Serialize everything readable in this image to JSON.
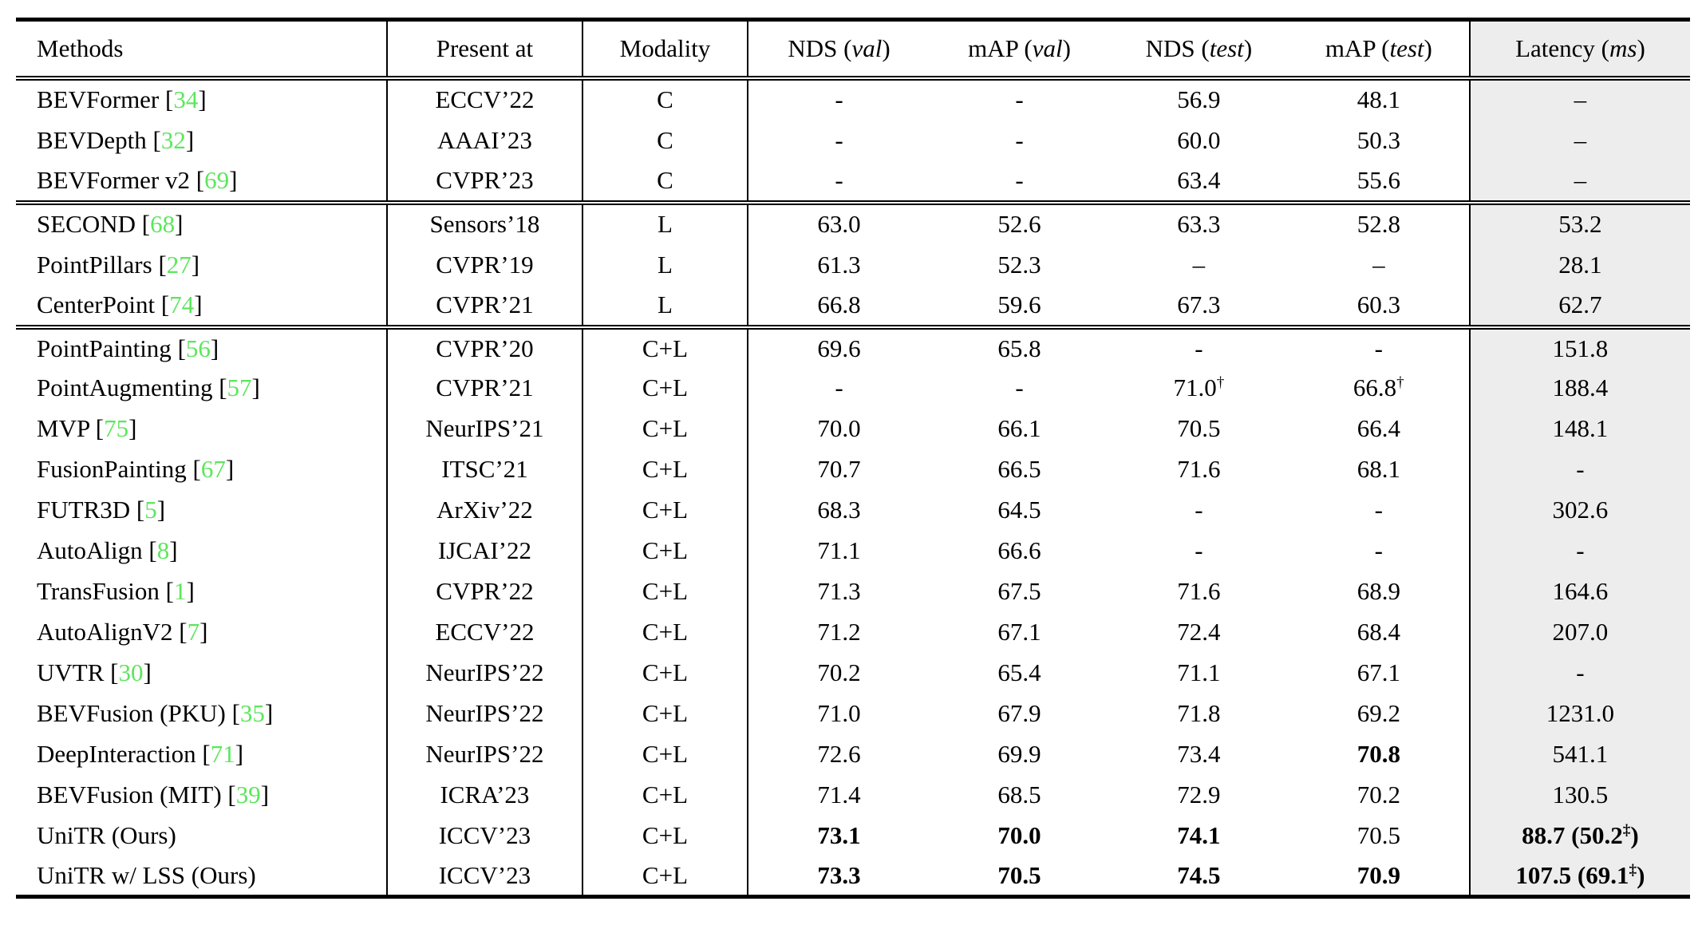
{
  "colors": {
    "citation_green": "#5ce65c",
    "latency_column_bg": "#ededed",
    "rule_black": "#000000"
  },
  "table": {
    "columns": [
      {
        "id": "methods",
        "pre": "Methods",
        "it": "",
        "post": ""
      },
      {
        "id": "present",
        "pre": "Present at",
        "it": "",
        "post": ""
      },
      {
        "id": "modality",
        "pre": "Modality",
        "it": "",
        "post": ""
      },
      {
        "id": "nds_val",
        "pre": "NDS (",
        "it": "val",
        "post": ")"
      },
      {
        "id": "map_val",
        "pre": "mAP (",
        "it": "val",
        "post": ")"
      },
      {
        "id": "nds_test",
        "pre": "NDS (",
        "it": "test",
        "post": ")"
      },
      {
        "id": "map_test",
        "pre": "mAP (",
        "it": "test",
        "post": ")"
      },
      {
        "id": "latency",
        "pre": "Latency (",
        "it": "ms",
        "post": ")"
      }
    ],
    "sections": [
      {
        "name": "camera",
        "rows": [
          {
            "method": "BEVFormer",
            "cite": "34",
            "venue": "ECCV’22",
            "modality": "C",
            "metrics": [
              {
                "t": "-"
              },
              {
                "t": "-"
              },
              {
                "t": "56.9"
              },
              {
                "t": "48.1"
              },
              {
                "t": "–"
              }
            ]
          },
          {
            "method": "BEVDepth",
            "cite": "32",
            "venue": "AAAI’23",
            "modality": "C",
            "metrics": [
              {
                "t": "-"
              },
              {
                "t": "-"
              },
              {
                "t": "60.0"
              },
              {
                "t": "50.3"
              },
              {
                "t": "–"
              }
            ]
          },
          {
            "method": "BEVFormer v2",
            "cite": "69",
            "venue": "CVPR’23",
            "modality": "C",
            "metrics": [
              {
                "t": "-"
              },
              {
                "t": "-"
              },
              {
                "t": "63.4"
              },
              {
                "t": "55.6"
              },
              {
                "t": "–"
              }
            ]
          }
        ]
      },
      {
        "name": "lidar",
        "rows": [
          {
            "method": "SECOND",
            "cite": "68",
            "venue": "Sensors’18",
            "modality": "L",
            "metrics": [
              {
                "t": "63.0"
              },
              {
                "t": "52.6"
              },
              {
                "t": "63.3"
              },
              {
                "t": "52.8"
              },
              {
                "t": "53.2"
              }
            ]
          },
          {
            "method": "PointPillars",
            "cite": "27",
            "venue": "CVPR’19",
            "modality": "L",
            "metrics": [
              {
                "t": "61.3"
              },
              {
                "t": "52.3"
              },
              {
                "t": "–"
              },
              {
                "t": "–"
              },
              {
                "t": "28.1"
              }
            ]
          },
          {
            "method": "CenterPoint",
            "cite": "74",
            "venue": "CVPR’21",
            "modality": "L",
            "metrics": [
              {
                "t": "66.8"
              },
              {
                "t": "59.6"
              },
              {
                "t": "67.3"
              },
              {
                "t": "60.3"
              },
              {
                "t": "62.7"
              }
            ]
          }
        ]
      },
      {
        "name": "fusion",
        "rows": [
          {
            "method": "PointPainting",
            "cite": "56",
            "venue": "CVPR’20",
            "modality": "C+L",
            "metrics": [
              {
                "t": "69.6"
              },
              {
                "t": "65.8"
              },
              {
                "t": "-"
              },
              {
                "t": "-"
              },
              {
                "t": "151.8"
              }
            ]
          },
          {
            "method": "PointAugmenting",
            "cite": "57",
            "venue": "CVPR’21",
            "modality": "C+L",
            "metrics": [
              {
                "t": "-"
              },
              {
                "t": "-"
              },
              {
                "t": "71.0",
                "sup": "†"
              },
              {
                "t": "66.8",
                "sup": "†"
              },
              {
                "t": "188.4"
              }
            ]
          },
          {
            "method": "MVP",
            "cite": "75",
            "venue": "NeurIPS’21",
            "modality": "C+L",
            "metrics": [
              {
                "t": "70.0"
              },
              {
                "t": "66.1"
              },
              {
                "t": "70.5"
              },
              {
                "t": "66.4"
              },
              {
                "t": "148.1"
              }
            ]
          },
          {
            "method": "FusionPainting",
            "cite": "67",
            "venue": "ITSC’21",
            "modality": "C+L",
            "metrics": [
              {
                "t": "70.7"
              },
              {
                "t": "66.5"
              },
              {
                "t": "71.6"
              },
              {
                "t": "68.1"
              },
              {
                "t": "-"
              }
            ]
          },
          {
            "method": "FUTR3D",
            "cite": "5",
            "venue": "ArXiv’22",
            "modality": "C+L",
            "metrics": [
              {
                "t": "68.3"
              },
              {
                "t": "64.5"
              },
              {
                "t": "-"
              },
              {
                "t": "-"
              },
              {
                "t": "302.6"
              }
            ]
          },
          {
            "method": "AutoAlign",
            "cite": "8",
            "venue": "IJCAI’22",
            "modality": "C+L",
            "metrics": [
              {
                "t": "71.1"
              },
              {
                "t": "66.6"
              },
              {
                "t": "-"
              },
              {
                "t": "-"
              },
              {
                "t": "-"
              }
            ]
          },
          {
            "method": "TransFusion",
            "cite": "1",
            "venue": "CVPR’22",
            "modality": "C+L",
            "metrics": [
              {
                "t": "71.3"
              },
              {
                "t": "67.5"
              },
              {
                "t": "71.6"
              },
              {
                "t": "68.9"
              },
              {
                "t": "164.6"
              }
            ]
          },
          {
            "method": "AutoAlignV2",
            "cite": "7",
            "venue": "ECCV’22",
            "modality": "C+L",
            "metrics": [
              {
                "t": "71.2"
              },
              {
                "t": "67.1"
              },
              {
                "t": "72.4"
              },
              {
                "t": "68.4"
              },
              {
                "t": "207.0"
              }
            ]
          },
          {
            "method": "UVTR",
            "cite": "30",
            "venue": "NeurIPS’22",
            "modality": "C+L",
            "metrics": [
              {
                "t": "70.2"
              },
              {
                "t": "65.4"
              },
              {
                "t": "71.1"
              },
              {
                "t": "67.1"
              },
              {
                "t": "-"
              }
            ]
          },
          {
            "method": "BEVFusion (PKU)",
            "cite": "35",
            "venue": "NeurIPS’22",
            "modality": "C+L",
            "metrics": [
              {
                "t": "71.0"
              },
              {
                "t": "67.9"
              },
              {
                "t": "71.8"
              },
              {
                "t": "69.2"
              },
              {
                "t": "1231.0"
              }
            ]
          },
          {
            "method": "DeepInteraction",
            "cite": "71",
            "venue": "NeurIPS’22",
            "modality": "C+L",
            "metrics": [
              {
                "t": "72.6"
              },
              {
                "t": "69.9"
              },
              {
                "t": "73.4"
              },
              {
                "t": "70.8",
                "b": true
              },
              {
                "t": "541.1"
              }
            ]
          },
          {
            "method": "BEVFusion (MIT)",
            "cite": "39",
            "venue": "ICRA’23",
            "modality": "C+L",
            "metrics": [
              {
                "t": "71.4"
              },
              {
                "t": "68.5"
              },
              {
                "t": "72.9"
              },
              {
                "t": "70.2"
              },
              {
                "t": "130.5"
              }
            ]
          },
          {
            "method": "UniTR (Ours)",
            "cite": null,
            "venue": "ICCV’23",
            "modality": "C+L",
            "metrics": [
              {
                "t": "73.1",
                "b": true
              },
              {
                "t": "70.0",
                "b": true
              },
              {
                "t": "74.1",
                "b": true
              },
              {
                "t": "70.5"
              },
              {
                "t": "88.7 (50.2",
                "sup": "‡",
                "tail": ")",
                "b": true
              }
            ]
          },
          {
            "method": "UniTR w/ LSS (Ours)",
            "cite": null,
            "venue": "ICCV’23",
            "modality": "C+L",
            "metrics": [
              {
                "t": "73.3",
                "b": true
              },
              {
                "t": "70.5",
                "b": true
              },
              {
                "t": "74.5",
                "b": true
              },
              {
                "t": "70.9",
                "b": true
              },
              {
                "t": "107.5 (69.1",
                "sup": "‡",
                "tail": ")",
                "b": true
              }
            ]
          }
        ]
      }
    ]
  }
}
